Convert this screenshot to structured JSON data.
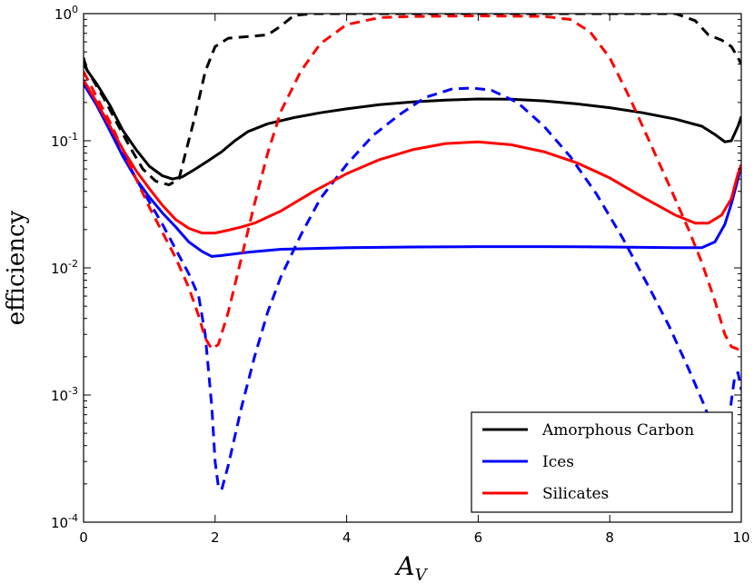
{
  "chart_data": {
    "type": "line",
    "xlabel": "A_V",
    "ylabel": "efficiency",
    "xlim": [
      0,
      10
    ],
    "ylim": [
      0.0001,
      1
    ],
    "yscale": "log",
    "grid": false,
    "legend_position": "lower-right",
    "x_ticks": [
      {
        "value": 0,
        "label": "0"
      },
      {
        "value": 2,
        "label": "2"
      },
      {
        "value": 4,
        "label": "4"
      },
      {
        "value": 6,
        "label": "6"
      },
      {
        "value": 8,
        "label": "8"
      },
      {
        "value": 10,
        "label": "10"
      }
    ],
    "y_ticks": [
      {
        "value": 1,
        "base": "10",
        "exp": "0"
      },
      {
        "value": 0.1,
        "base": "10",
        "exp": "-1"
      },
      {
        "value": 0.01,
        "base": "10",
        "exp": "-2"
      },
      {
        "value": 0.001,
        "base": "10",
        "exp": "-3"
      },
      {
        "value": 0.0001,
        "base": "10",
        "exp": "-4"
      }
    ],
    "legend": [
      {
        "label": "Amorphous Carbon",
        "color": "#000000"
      },
      {
        "label": "Ices",
        "color": "#0000ff"
      },
      {
        "label": "Silicates",
        "color": "#ff0000"
      }
    ],
    "series": [
      {
        "color": "#000000",
        "dash": "solid",
        "points": [
          [
            0.0,
            0.45
          ],
          [
            0.05,
            0.36
          ],
          [
            0.2,
            0.28
          ],
          [
            0.4,
            0.19
          ],
          [
            0.6,
            0.12
          ],
          [
            0.8,
            0.085
          ],
          [
            1.0,
            0.063
          ],
          [
            1.2,
            0.053
          ],
          [
            1.35,
            0.05
          ],
          [
            1.5,
            0.052
          ],
          [
            1.7,
            0.06
          ],
          [
            1.9,
            0.07
          ],
          [
            2.1,
            0.082
          ],
          [
            2.3,
            0.1
          ],
          [
            2.5,
            0.118
          ],
          [
            2.8,
            0.136
          ],
          [
            3.2,
            0.152
          ],
          [
            3.6,
            0.166
          ],
          [
            4.0,
            0.178
          ],
          [
            4.5,
            0.192
          ],
          [
            5.0,
            0.202
          ],
          [
            5.5,
            0.209
          ],
          [
            6.0,
            0.213
          ],
          [
            6.5,
            0.212
          ],
          [
            7.0,
            0.206
          ],
          [
            7.5,
            0.195
          ],
          [
            8.0,
            0.182
          ],
          [
            8.5,
            0.166
          ],
          [
            9.0,
            0.148
          ],
          [
            9.4,
            0.13
          ],
          [
            9.6,
            0.112
          ],
          [
            9.75,
            0.098
          ],
          [
            9.85,
            0.1
          ],
          [
            9.95,
            0.13
          ],
          [
            10.0,
            0.155
          ]
        ]
      },
      {
        "color": "#000000",
        "dash": "dashed",
        "points": [
          [
            0.0,
            0.4
          ],
          [
            0.1,
            0.33
          ],
          [
            0.3,
            0.22
          ],
          [
            0.5,
            0.14
          ],
          [
            0.7,
            0.09
          ],
          [
            0.9,
            0.06
          ],
          [
            1.1,
            0.048
          ],
          [
            1.3,
            0.045
          ],
          [
            1.45,
            0.05
          ],
          [
            1.55,
            0.08
          ],
          [
            1.7,
            0.16
          ],
          [
            1.85,
            0.35
          ],
          [
            2.0,
            0.55
          ],
          [
            2.2,
            0.64
          ],
          [
            2.5,
            0.66
          ],
          [
            2.8,
            0.68
          ],
          [
            3.0,
            0.8
          ],
          [
            3.2,
            0.97
          ],
          [
            3.5,
            1.0
          ],
          [
            9.0,
            1.0
          ],
          [
            9.3,
            0.88
          ],
          [
            9.5,
            0.68
          ],
          [
            9.7,
            0.62
          ],
          [
            9.85,
            0.55
          ],
          [
            9.95,
            0.45
          ],
          [
            10.0,
            0.4
          ]
        ]
      },
      {
        "color": "#0000ff",
        "dash": "solid",
        "points": [
          [
            0.0,
            0.28
          ],
          [
            0.2,
            0.19
          ],
          [
            0.4,
            0.12
          ],
          [
            0.6,
            0.075
          ],
          [
            0.8,
            0.05
          ],
          [
            1.0,
            0.036
          ],
          [
            1.2,
            0.027
          ],
          [
            1.4,
            0.021
          ],
          [
            1.6,
            0.016
          ],
          [
            1.8,
            0.0135
          ],
          [
            1.95,
            0.0123
          ],
          [
            2.1,
            0.0125
          ],
          [
            2.5,
            0.0133
          ],
          [
            3.0,
            0.014
          ],
          [
            4.0,
            0.0144
          ],
          [
            5.0,
            0.0146
          ],
          [
            6.0,
            0.0147
          ],
          [
            7.0,
            0.0147
          ],
          [
            8.0,
            0.0146
          ],
          [
            9.0,
            0.0144
          ],
          [
            9.4,
            0.0144
          ],
          [
            9.6,
            0.016
          ],
          [
            9.75,
            0.022
          ],
          [
            9.85,
            0.032
          ],
          [
            9.95,
            0.05
          ],
          [
            10.0,
            0.065
          ]
        ]
      },
      {
        "color": "#0000ff",
        "dash": "dashed",
        "points": [
          [
            0.0,
            0.3
          ],
          [
            0.2,
            0.2
          ],
          [
            0.4,
            0.13
          ],
          [
            0.6,
            0.08
          ],
          [
            0.8,
            0.05
          ],
          [
            1.0,
            0.033
          ],
          [
            1.2,
            0.022
          ],
          [
            1.4,
            0.014
          ],
          [
            1.6,
            0.009
          ],
          [
            1.75,
            0.006
          ],
          [
            1.85,
            0.003
          ],
          [
            1.95,
            0.0008
          ],
          [
            2.0,
            0.0003
          ],
          [
            2.05,
            0.00019
          ],
          [
            2.1,
            0.00018
          ],
          [
            2.2,
            0.00028
          ],
          [
            2.4,
            0.0008
          ],
          [
            2.6,
            0.002
          ],
          [
            2.8,
            0.0045
          ],
          [
            3.0,
            0.0085
          ],
          [
            3.3,
            0.018
          ],
          [
            3.6,
            0.035
          ],
          [
            4.0,
            0.065
          ],
          [
            4.4,
            0.11
          ],
          [
            4.8,
            0.16
          ],
          [
            5.2,
            0.22
          ],
          [
            5.6,
            0.255
          ],
          [
            5.9,
            0.26
          ],
          [
            6.2,
            0.25
          ],
          [
            6.6,
            0.2
          ],
          [
            7.0,
            0.13
          ],
          [
            7.4,
            0.075
          ],
          [
            7.8,
            0.038
          ],
          [
            8.2,
            0.017
          ],
          [
            8.6,
            0.007
          ],
          [
            8.9,
            0.0035
          ],
          [
            9.2,
            0.0016
          ],
          [
            9.45,
            0.0008
          ],
          [
            9.65,
            0.0004
          ],
          [
            9.8,
            0.0005
          ],
          [
            9.85,
            0.0009
          ],
          [
            9.9,
            0.0014
          ],
          [
            9.95,
            0.0015
          ],
          [
            10.0,
            0.0011
          ]
        ]
      },
      {
        "color": "#ff0000",
        "dash": "solid",
        "points": [
          [
            0.0,
            0.3
          ],
          [
            0.2,
            0.2
          ],
          [
            0.4,
            0.13
          ],
          [
            0.6,
            0.085
          ],
          [
            0.8,
            0.058
          ],
          [
            1.0,
            0.042
          ],
          [
            1.2,
            0.031
          ],
          [
            1.4,
            0.024
          ],
          [
            1.6,
            0.0205
          ],
          [
            1.8,
            0.0188
          ],
          [
            2.0,
            0.0188
          ],
          [
            2.2,
            0.0198
          ],
          [
            2.4,
            0.021
          ],
          [
            2.6,
            0.0225
          ],
          [
            3.0,
            0.028
          ],
          [
            3.5,
            0.04
          ],
          [
            4.0,
            0.055
          ],
          [
            4.5,
            0.071
          ],
          [
            5.0,
            0.085
          ],
          [
            5.5,
            0.095
          ],
          [
            6.0,
            0.098
          ],
          [
            6.5,
            0.093
          ],
          [
            7.0,
            0.082
          ],
          [
            7.5,
            0.067
          ],
          [
            8.0,
            0.051
          ],
          [
            8.5,
            0.036
          ],
          [
            9.0,
            0.026
          ],
          [
            9.3,
            0.0225
          ],
          [
            9.5,
            0.0225
          ],
          [
            9.7,
            0.026
          ],
          [
            9.85,
            0.035
          ],
          [
            9.95,
            0.055
          ],
          [
            10.0,
            0.065
          ]
        ]
      },
      {
        "color": "#ff0000",
        "dash": "dashed",
        "points": [
          [
            0.0,
            0.35
          ],
          [
            0.2,
            0.22
          ],
          [
            0.4,
            0.14
          ],
          [
            0.6,
            0.085
          ],
          [
            0.8,
            0.05
          ],
          [
            1.0,
            0.03
          ],
          [
            1.2,
            0.019
          ],
          [
            1.4,
            0.012
          ],
          [
            1.6,
            0.007
          ],
          [
            1.75,
            0.0042
          ],
          [
            1.85,
            0.0028
          ],
          [
            1.95,
            0.0023
          ],
          [
            2.05,
            0.0025
          ],
          [
            2.2,
            0.0045
          ],
          [
            2.4,
            0.012
          ],
          [
            2.6,
            0.032
          ],
          [
            2.8,
            0.08
          ],
          [
            3.0,
            0.17
          ],
          [
            3.3,
            0.35
          ],
          [
            3.6,
            0.58
          ],
          [
            4.0,
            0.82
          ],
          [
            4.5,
            0.93
          ],
          [
            5.0,
            0.95
          ],
          [
            6.0,
            0.96
          ],
          [
            7.0,
            0.95
          ],
          [
            7.4,
            0.9
          ],
          [
            7.7,
            0.72
          ],
          [
            8.0,
            0.45
          ],
          [
            8.3,
            0.22
          ],
          [
            8.6,
            0.1
          ],
          [
            8.9,
            0.045
          ],
          [
            9.2,
            0.02
          ],
          [
            9.4,
            0.011
          ],
          [
            9.6,
            0.0055
          ],
          [
            9.75,
            0.003
          ],
          [
            9.85,
            0.0024
          ],
          [
            9.95,
            0.0023
          ],
          [
            10.0,
            0.0025
          ]
        ]
      }
    ]
  }
}
